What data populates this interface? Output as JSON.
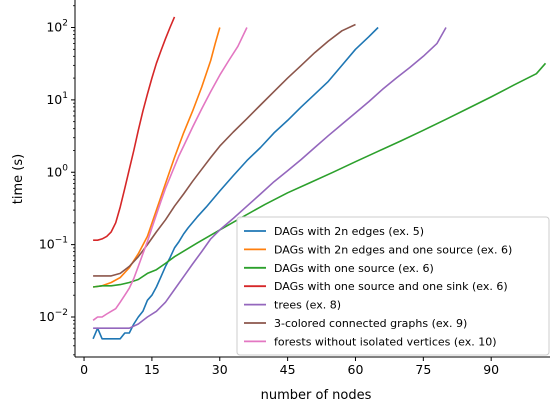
{
  "chart_data": {
    "type": "line",
    "title": "",
    "xlabel": "number of nodes",
    "ylabel": "time (s)",
    "xlim": [
      -2,
      103
    ],
    "ylim": [
      0.0028,
      240
    ],
    "yscale": "log",
    "grid": false,
    "legend_position": "lower-right",
    "x_ticks": [
      0,
      15,
      30,
      45,
      60,
      75,
      90
    ],
    "y_ticks": [
      0.01,
      0.1,
      1,
      10,
      100
    ],
    "y_tick_labels": [
      {
        "base": "10",
        "exp": "−2"
      },
      {
        "base": "10",
        "exp": "−1"
      },
      {
        "base": "10",
        "exp": "0"
      },
      {
        "base": "10",
        "exp": "1"
      },
      {
        "base": "10",
        "exp": "2"
      }
    ],
    "series": [
      {
        "name": "DAGs with 2n edges (ex. 5)",
        "color": "#1f77b4",
        "points": [
          [
            2,
            0.005
          ],
          [
            3,
            0.007
          ],
          [
            4,
            0.005
          ],
          [
            5,
            0.005
          ],
          [
            6,
            0.005
          ],
          [
            7,
            0.005
          ],
          [
            8,
            0.005
          ],
          [
            9,
            0.006
          ],
          [
            10,
            0.006
          ],
          [
            11,
            0.008
          ],
          [
            12,
            0.01
          ],
          [
            13,
            0.012
          ],
          [
            14,
            0.017
          ],
          [
            15,
            0.02
          ],
          [
            16,
            0.026
          ],
          [
            17,
            0.036
          ],
          [
            18,
            0.05
          ],
          [
            19,
            0.066
          ],
          [
            20,
            0.09
          ],
          [
            21,
            0.11
          ],
          [
            22,
            0.14
          ],
          [
            23,
            0.17
          ],
          [
            25,
            0.24
          ],
          [
            27,
            0.33
          ],
          [
            30,
            0.55
          ],
          [
            33,
            0.9
          ],
          [
            36,
            1.45
          ],
          [
            39,
            2.2
          ],
          [
            42,
            3.5
          ],
          [
            45,
            5.2
          ],
          [
            48,
            8
          ],
          [
            51,
            12
          ],
          [
            54,
            18
          ],
          [
            57,
            30
          ],
          [
            60,
            50
          ],
          [
            63,
            75
          ],
          [
            65,
            100
          ]
        ]
      },
      {
        "name": "DAGs with 2n edges and one source (ex. 6)",
        "color": "#ff7f0e",
        "points": [
          [
            2,
            0.026
          ],
          [
            4,
            0.027
          ],
          [
            6,
            0.03
          ],
          [
            8,
            0.035
          ],
          [
            10,
            0.048
          ],
          [
            12,
            0.075
          ],
          [
            14,
            0.13
          ],
          [
            16,
            0.3
          ],
          [
            18,
            0.7
          ],
          [
            20,
            1.6
          ],
          [
            22,
            3.5
          ],
          [
            24,
            7
          ],
          [
            26,
            15
          ],
          [
            28,
            35
          ],
          [
            29,
            60
          ],
          [
            30,
            100
          ]
        ]
      },
      {
        "name": "DAGs with one source (ex. 6)",
        "color": "#2ca02c",
        "points": [
          [
            2,
            0.026
          ],
          [
            4,
            0.027
          ],
          [
            6,
            0.027
          ],
          [
            8,
            0.028
          ],
          [
            10,
            0.03
          ],
          [
            12,
            0.033
          ],
          [
            14,
            0.04
          ],
          [
            16,
            0.045
          ],
          [
            18,
            0.055
          ],
          [
            20,
            0.068
          ],
          [
            25,
            0.105
          ],
          [
            30,
            0.16
          ],
          [
            35,
            0.24
          ],
          [
            40,
            0.36
          ],
          [
            45,
            0.52
          ],
          [
            50,
            0.72
          ],
          [
            55,
            1.0
          ],
          [
            60,
            1.4
          ],
          [
            65,
            1.95
          ],
          [
            70,
            2.7
          ],
          [
            75,
            3.8
          ],
          [
            80,
            5.4
          ],
          [
            85,
            7.7
          ],
          [
            90,
            11
          ],
          [
            95,
            16
          ],
          [
            100,
            23
          ],
          [
            102,
            32
          ]
        ]
      },
      {
        "name": "DAGs with one source and one sink (ex. 6)",
        "color": "#d62728",
        "points": [
          [
            2,
            0.115
          ],
          [
            3,
            0.115
          ],
          [
            4,
            0.12
          ],
          [
            5,
            0.13
          ],
          [
            6,
            0.15
          ],
          [
            7,
            0.2
          ],
          [
            8,
            0.33
          ],
          [
            9,
            0.6
          ],
          [
            10,
            1.1
          ],
          [
            11,
            2
          ],
          [
            12,
            3.8
          ],
          [
            13,
            7
          ],
          [
            14,
            12
          ],
          [
            15,
            20
          ],
          [
            16,
            32
          ],
          [
            17,
            48
          ],
          [
            18,
            70
          ],
          [
            19,
            100
          ],
          [
            20,
            140
          ]
        ]
      },
      {
        "name": "trees (ex. 8)",
        "color": "#9467bd",
        "points": [
          [
            2,
            0.007
          ],
          [
            4,
            0.007
          ],
          [
            6,
            0.007
          ],
          [
            8,
            0.007
          ],
          [
            10,
            0.007
          ],
          [
            12,
            0.008
          ],
          [
            14,
            0.01
          ],
          [
            16,
            0.012
          ],
          [
            18,
            0.016
          ],
          [
            20,
            0.024
          ],
          [
            22,
            0.036
          ],
          [
            24,
            0.054
          ],
          [
            26,
            0.08
          ],
          [
            28,
            0.12
          ],
          [
            30,
            0.16
          ],
          [
            33,
            0.23
          ],
          [
            36,
            0.34
          ],
          [
            39,
            0.5
          ],
          [
            42,
            0.74
          ],
          [
            45,
            1.05
          ],
          [
            48,
            1.5
          ],
          [
            51,
            2.2
          ],
          [
            54,
            3.2
          ],
          [
            57,
            4.6
          ],
          [
            60,
            6.6
          ],
          [
            63,
            9.5
          ],
          [
            66,
            14
          ],
          [
            69,
            20
          ],
          [
            72,
            28
          ],
          [
            75,
            40
          ],
          [
            78,
            60
          ],
          [
            80,
            100
          ]
        ]
      },
      {
        "name": "3-colored connected graphs (ex. 9)",
        "color": "#8c564b",
        "points": [
          [
            2,
            0.037
          ],
          [
            4,
            0.037
          ],
          [
            6,
            0.037
          ],
          [
            8,
            0.04
          ],
          [
            10,
            0.05
          ],
          [
            12,
            0.068
          ],
          [
            14,
            0.1
          ],
          [
            16,
            0.15
          ],
          [
            18,
            0.22
          ],
          [
            20,
            0.34
          ],
          [
            22,
            0.5
          ],
          [
            24,
            0.75
          ],
          [
            26,
            1.1
          ],
          [
            28,
            1.6
          ],
          [
            30,
            2.3
          ],
          [
            33,
            3.6
          ],
          [
            36,
            5.5
          ],
          [
            39,
            8.5
          ],
          [
            42,
            13
          ],
          [
            45,
            20
          ],
          [
            48,
            30
          ],
          [
            51,
            45
          ],
          [
            54,
            65
          ],
          [
            57,
            90
          ],
          [
            60,
            110
          ]
        ]
      },
      {
        "name": "forests without isolated vertices (ex. 10)",
        "color": "#e377c2",
        "points": [
          [
            2,
            0.009
          ],
          [
            3,
            0.01
          ],
          [
            4,
            0.01
          ],
          [
            5,
            0.011
          ],
          [
            6,
            0.012
          ],
          [
            7,
            0.013
          ],
          [
            8,
            0.016
          ],
          [
            9,
            0.02
          ],
          [
            10,
            0.025
          ],
          [
            11,
            0.034
          ],
          [
            12,
            0.05
          ],
          [
            13,
            0.075
          ],
          [
            14,
            0.11
          ],
          [
            15,
            0.17
          ],
          [
            16,
            0.26
          ],
          [
            17,
            0.4
          ],
          [
            18,
            0.6
          ],
          [
            19,
            0.85
          ],
          [
            20,
            1.2
          ],
          [
            21,
            1.7
          ],
          [
            22,
            2.3
          ],
          [
            24,
            4.2
          ],
          [
            26,
            7.5
          ],
          [
            28,
            13
          ],
          [
            30,
            22
          ],
          [
            32,
            35
          ],
          [
            34,
            55
          ],
          [
            36,
            100
          ]
        ]
      }
    ]
  }
}
